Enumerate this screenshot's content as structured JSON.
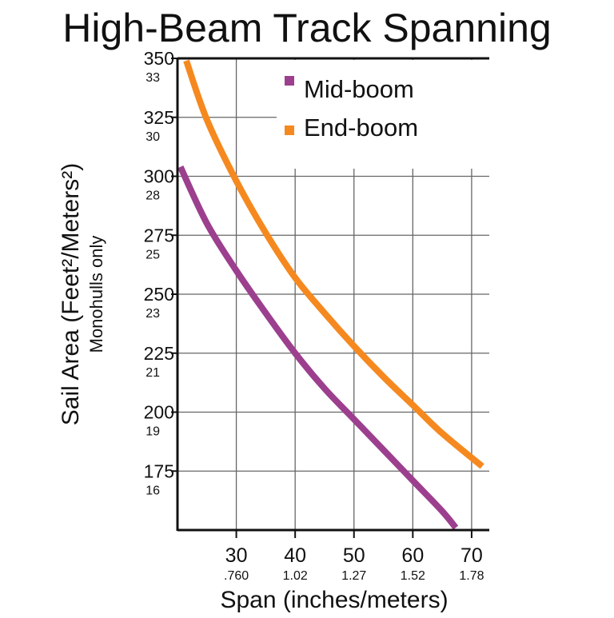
{
  "chart_data": {
    "type": "line",
    "title": "High-Beam Track Spanning",
    "xlabel": "Span (inches/meters)",
    "ylabel": "Sail Area (Feet²/Meters²)",
    "ylabel_sub": "Monohulls only",
    "xlim": [
      20,
      73
    ],
    "ylim": [
      150,
      350
    ],
    "grid": true,
    "legend_placement": "top-right",
    "x_ticks": [
      {
        "value": 30,
        "label": "30",
        "sublabel": ".760"
      },
      {
        "value": 40,
        "label": "40",
        "sublabel": "1.02"
      },
      {
        "value": 50,
        "label": "50",
        "sublabel": "1.27"
      },
      {
        "value": 60,
        "label": "60",
        "sublabel": "1.52"
      },
      {
        "value": 70,
        "label": "70",
        "sublabel": "1.78"
      }
    ],
    "y_ticks": [
      {
        "value": 350,
        "label": "350",
        "sublabel": "33"
      },
      {
        "value": 325,
        "label": "325",
        "sublabel": "30"
      },
      {
        "value": 300,
        "label": "300",
        "sublabel": "28"
      },
      {
        "value": 275,
        "label": "275",
        "sublabel": "25"
      },
      {
        "value": 250,
        "label": "250",
        "sublabel": "23"
      },
      {
        "value": 225,
        "label": "225",
        "sublabel": "21"
      },
      {
        "value": 200,
        "label": "200",
        "sublabel": "19"
      },
      {
        "value": 175,
        "label": "175",
        "sublabel": "16"
      }
    ],
    "series": [
      {
        "name": "Mid-boom",
        "color": "#9c3f8e",
        "x": [
          20.5,
          25,
          30,
          35,
          40,
          45,
          50,
          55,
          60,
          65,
          67.3
        ],
        "y": [
          304,
          280,
          260,
          242,
          225,
          210,
          197,
          184,
          171,
          158,
          151
        ]
      },
      {
        "name": "End-boom",
        "color": "#f5891f",
        "x": [
          21.5,
          25,
          30,
          35,
          40,
          45,
          50,
          55,
          60,
          65,
          71.8
        ],
        "y": [
          349,
          324,
          298,
          276,
          257,
          242,
          228,
          215,
          203,
          191,
          177
        ]
      }
    ]
  }
}
